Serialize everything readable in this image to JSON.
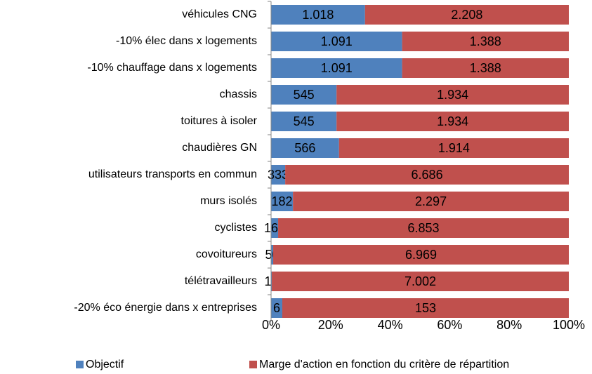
{
  "chart_data": {
    "type": "bar",
    "orientation": "horizontal",
    "stacking": "percent",
    "categories": [
      "véhicules CNG",
      "-10% élec dans x logements",
      "-10% chauffage dans x logements",
      "chassis",
      "toitures à isoler",
      "chaudières GN",
      "utilisateurs transports en commun",
      "murs isolés",
      "cyclistes",
      "covoitureurs",
      "télétravailleurs",
      "-20% éco énergie dans x entreprises"
    ],
    "series": [
      {
        "name": "Objectif",
        "color": "#4f81bd",
        "values": [
          1018,
          1091,
          1091,
          545,
          545,
          566,
          333,
          182,
          166,
          50,
          17,
          6
        ],
        "value_labels": [
          "1.018",
          "1.091",
          "1.091",
          "545",
          "545",
          "566",
          "333",
          "182",
          "166",
          "50",
          "17",
          "6"
        ]
      },
      {
        "name": "Marge d'action en fonction du critère de répartition",
        "color": "#c0504d",
        "values": [
          2208,
          1388,
          1388,
          1934,
          1934,
          1914,
          6686,
          2297,
          6853,
          6969,
          7002,
          153
        ],
        "value_labels": [
          "2.208",
          "1.388",
          "1.388",
          "1.934",
          "1.934",
          "1.914",
          "6.686",
          "2.297",
          "6.853",
          "6.969",
          "7.002",
          "153"
        ]
      }
    ],
    "xlim": [
      0,
      100
    ],
    "xticks": [
      {
        "value": 0,
        "label": "0%"
      },
      {
        "value": 20,
        "label": "20%"
      },
      {
        "value": 40,
        "label": "40%"
      },
      {
        "value": 60,
        "label": "60%"
      },
      {
        "value": 80,
        "label": "80%"
      },
      {
        "value": 100,
        "label": "100%"
      }
    ],
    "grid": false,
    "legend": "bottom"
  }
}
